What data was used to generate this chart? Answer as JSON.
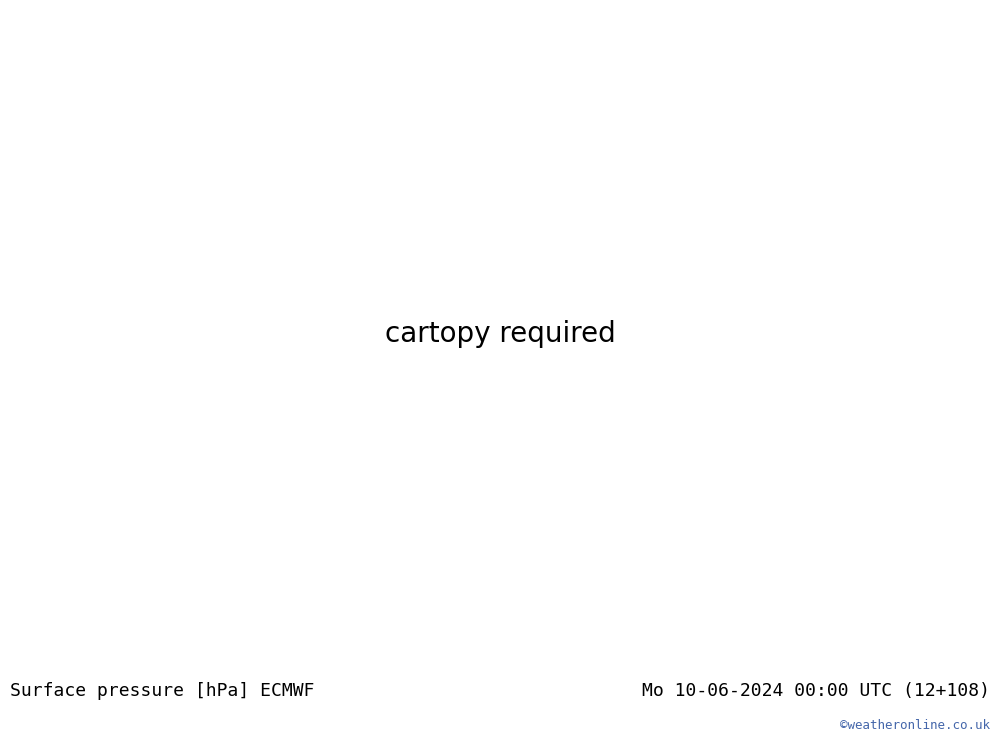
{
  "title_left": "Surface pressure [hPa] ECMWF",
  "title_right": "Mo 10-06-2024 00:00 UTC (12+108)",
  "watermark": "©weatheronline.co.uk",
  "ocean_color": "#d8d8d8",
  "land_color": "#b0e890",
  "border_color": "#909090",
  "coast_color": "#808080",
  "contour_black_color": "#000000",
  "contour_blue_color": "#0044bb",
  "contour_red_color": "#cc0000",
  "label_fontsize": 8.5,
  "title_fontsize": 13,
  "watermark_color": "#4466aa",
  "footer_bg": "#ebebeb",
  "map_extent": [
    -135,
    -30,
    -5,
    50
  ],
  "figsize": [
    10.0,
    7.33
  ],
  "dpi": 100
}
